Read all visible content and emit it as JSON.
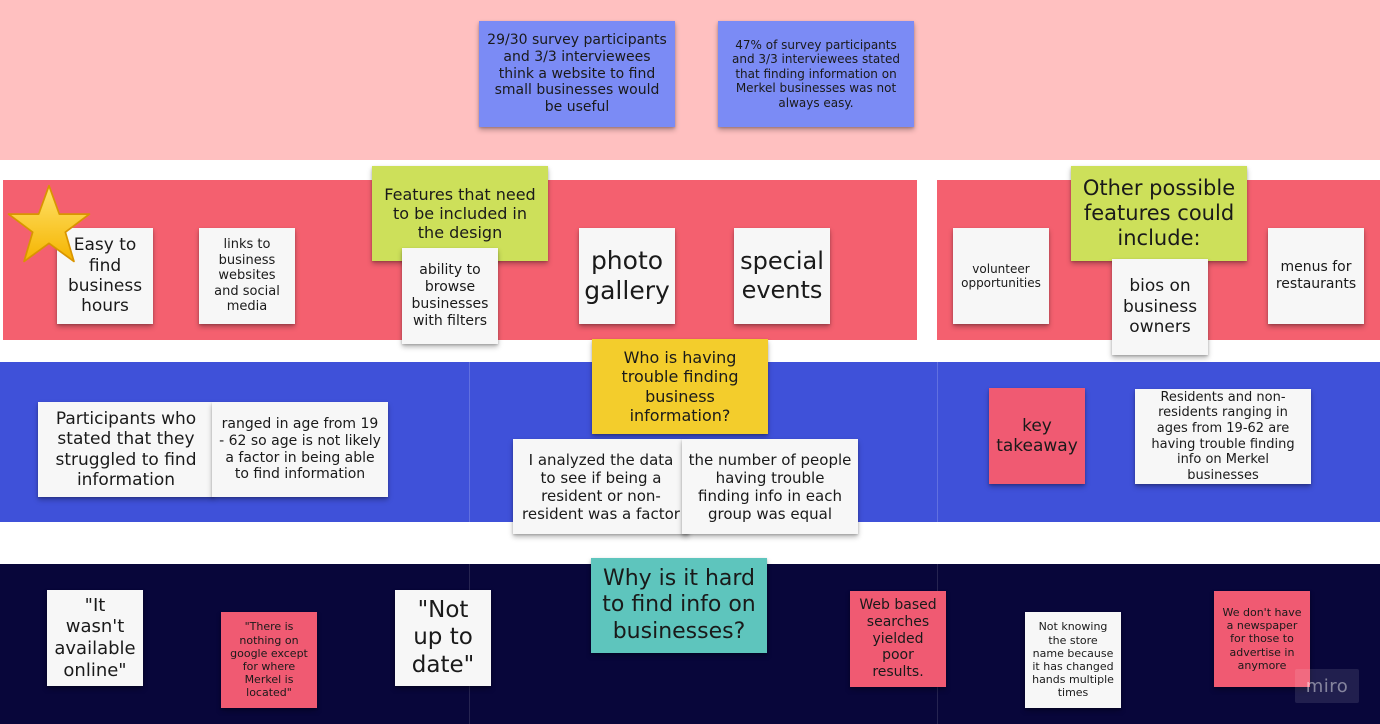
{
  "colors": {
    "band_top": "#ffc0c0",
    "band_features": "#f4606f",
    "band_trouble": "#3f51d9",
    "band_why": "#08063a",
    "divider": "#ffffff"
  },
  "top": {
    "note_useful": "29/30 survey participants and 3/3 interviewees think a website to find small businesses would be useful",
    "note_not_easy": "47% of survey participants and 3/3 interviewees stated that finding information on Merkel businesses was not always easy."
  },
  "features": {
    "header": "Features that need to be included in the design",
    "items": {
      "hours": "Easy to find business hours",
      "links": "links to business websites and social media",
      "filters": "ability to browse businesses with filters",
      "gallery": "photo gallery",
      "events": "special events"
    },
    "star_icon": "star-icon"
  },
  "other": {
    "header": "Other possible features could include:",
    "items": {
      "volunteer": "volunteer opportunities",
      "bios": "bios on business owners",
      "menus": "menus for restaurants"
    }
  },
  "trouble": {
    "header": "Who is having trouble finding business information?",
    "participants": "Participants who stated that they struggled to find information",
    "age_range": "ranged in age from 19 - 62 so age is not likely a factor in being able to find information",
    "analyzed": "I analyzed the data to see if being a resident or non-resident was a factor",
    "equal": "the number of people having trouble finding info in each group was equal",
    "key": "key takeaway",
    "takeaway": "Residents and non-residents ranging in ages from 19-62 are having trouble finding info on Merkel businesses"
  },
  "why": {
    "header": "Why is it hard to find info on businesses?",
    "not_online": "\"It wasn't available online\"",
    "google": "\"There is nothing on google except for where Merkel is located\"",
    "not_up_to_date": "\"Not up to date\"",
    "web_searches": "Web based searches yielded poor results.",
    "store_name": "Not knowing the store name because it has changed hands multiple times",
    "newspaper": "We don't have a newspaper for those to advertise in anymore"
  },
  "brand": {
    "logo": "miro"
  }
}
